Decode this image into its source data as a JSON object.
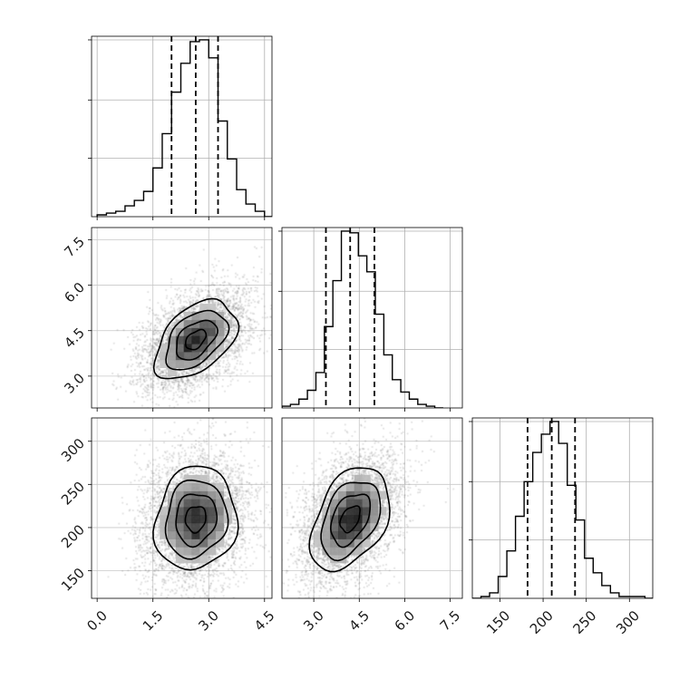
{
  "chart_data": {
    "type": "corner",
    "grid": true,
    "title": "",
    "parameters": [
      {
        "ticks": [
          0.0,
          1.5,
          3.0,
          4.5
        ],
        "tick_labels": [
          "0.0",
          "1.5",
          "3.0",
          "4.5"
        ],
        "range": [
          -0.15,
          4.7
        ],
        "quantiles": [
          2.0,
          2.65,
          3.25
        ],
        "hist_bin_width": 0.25,
        "hist_bins": [
          [
            0.0,
            1
          ],
          [
            0.25,
            2
          ],
          [
            0.5,
            3
          ],
          [
            0.75,
            6
          ],
          [
            1.0,
            9
          ],
          [
            1.25,
            14
          ],
          [
            1.5,
            27
          ],
          [
            1.75,
            46
          ],
          [
            2.0,
            69
          ],
          [
            2.25,
            85
          ],
          [
            2.5,
            97
          ],
          [
            2.75,
            98
          ],
          [
            3.0,
            88
          ],
          [
            3.25,
            53
          ],
          [
            3.5,
            32
          ],
          [
            3.75,
            15
          ],
          [
            4.0,
            7
          ],
          [
            4.25,
            3
          ],
          [
            4.5,
            0
          ]
        ]
      },
      {
        "ticks": [
          3.0,
          4.5,
          6.0,
          7.5
        ],
        "tick_labels": [
          "3.0",
          "4.5",
          "6.0",
          "7.5"
        ],
        "range": [
          1.95,
          7.9
        ],
        "quantiles": [
          3.4,
          4.2,
          5.0
        ],
        "hist_bin_width": 0.28,
        "hist_bins": [
          [
            1.95,
            1
          ],
          [
            2.23,
            2
          ],
          [
            2.51,
            5
          ],
          [
            2.79,
            10
          ],
          [
            3.07,
            20
          ],
          [
            3.35,
            46
          ],
          [
            3.63,
            72
          ],
          [
            3.91,
            100
          ],
          [
            4.19,
            99
          ],
          [
            4.47,
            86
          ],
          [
            4.75,
            77
          ],
          [
            5.03,
            53
          ],
          [
            5.31,
            30
          ],
          [
            5.59,
            16
          ],
          [
            5.87,
            9
          ],
          [
            6.15,
            5
          ],
          [
            6.43,
            2
          ],
          [
            6.71,
            1
          ],
          [
            6.99,
            0
          ]
        ]
      },
      {
        "ticks": [
          150,
          200,
          250,
          300
        ],
        "tick_labels": [
          "150",
          "200",
          "250",
          "300"
        ],
        "range": [
          118,
          327
        ],
        "quantiles": [
          182,
          210,
          237
        ],
        "hist_bin_width": 10,
        "hist_bins": [
          [
            118,
            0
          ],
          [
            128,
            1
          ],
          [
            138,
            3
          ],
          [
            148,
            12
          ],
          [
            158,
            26
          ],
          [
            168,
            45
          ],
          [
            178,
            64
          ],
          [
            188,
            80
          ],
          [
            198,
            90
          ],
          [
            208,
            97
          ],
          [
            218,
            85
          ],
          [
            228,
            62
          ],
          [
            238,
            43
          ],
          [
            248,
            22
          ],
          [
            258,
            14
          ],
          [
            268,
            7
          ],
          [
            278,
            3
          ],
          [
            288,
            1
          ],
          [
            298,
            1
          ],
          [
            308,
            1
          ],
          [
            318,
            0
          ]
        ]
      }
    ],
    "correlations": {
      "1-0": 0.45,
      "2-0": 0.1,
      "2-1": 0.4
    },
    "centers": [
      2.65,
      4.2,
      210
    ],
    "spreads": [
      0.55,
      0.65,
      30
    ],
    "contour_levels": [
      0.118,
      0.393,
      0.675,
      0.864
    ]
  }
}
